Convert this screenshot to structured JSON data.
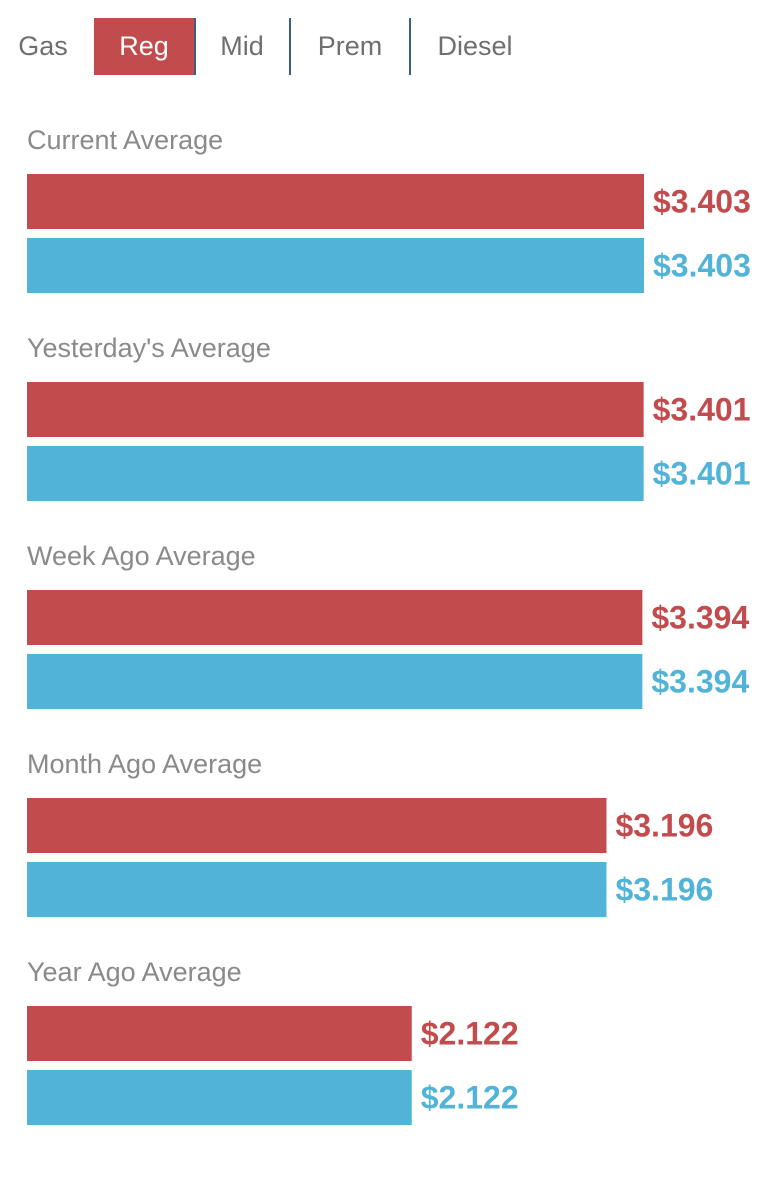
{
  "tabs": {
    "label": "Gas",
    "items": [
      {
        "label": "Reg",
        "active": true
      },
      {
        "label": "Mid",
        "active": false
      },
      {
        "label": "Prem",
        "active": false
      },
      {
        "label": "Diesel",
        "active": false
      }
    ]
  },
  "colors": {
    "primary_series": "#c24b4e",
    "secondary_series": "#52b3d8",
    "group_title": "#8a8a8a"
  },
  "chart_data": {
    "type": "bar",
    "orientation": "horizontal",
    "categories": [
      "Current Average",
      "Yesterday's Average",
      "Week Ago Average",
      "Month Ago Average",
      "Year Ago Average"
    ],
    "series": [
      {
        "color": "#c24b4e",
        "values": [
          3.403,
          3.401,
          3.394,
          3.196,
          2.122
        ],
        "labels": [
          "$3.403",
          "$3.401",
          "$3.394",
          "$3.196",
          "$2.122"
        ]
      },
      {
        "color": "#52b3d8",
        "values": [
          3.403,
          3.401,
          3.394,
          3.196,
          2.122
        ],
        "labels": [
          "$3.403",
          "$3.401",
          "$3.394",
          "$3.196",
          "$2.122"
        ]
      }
    ],
    "xlim": [
      0,
      3.403
    ],
    "grid": false,
    "legend": "none"
  }
}
